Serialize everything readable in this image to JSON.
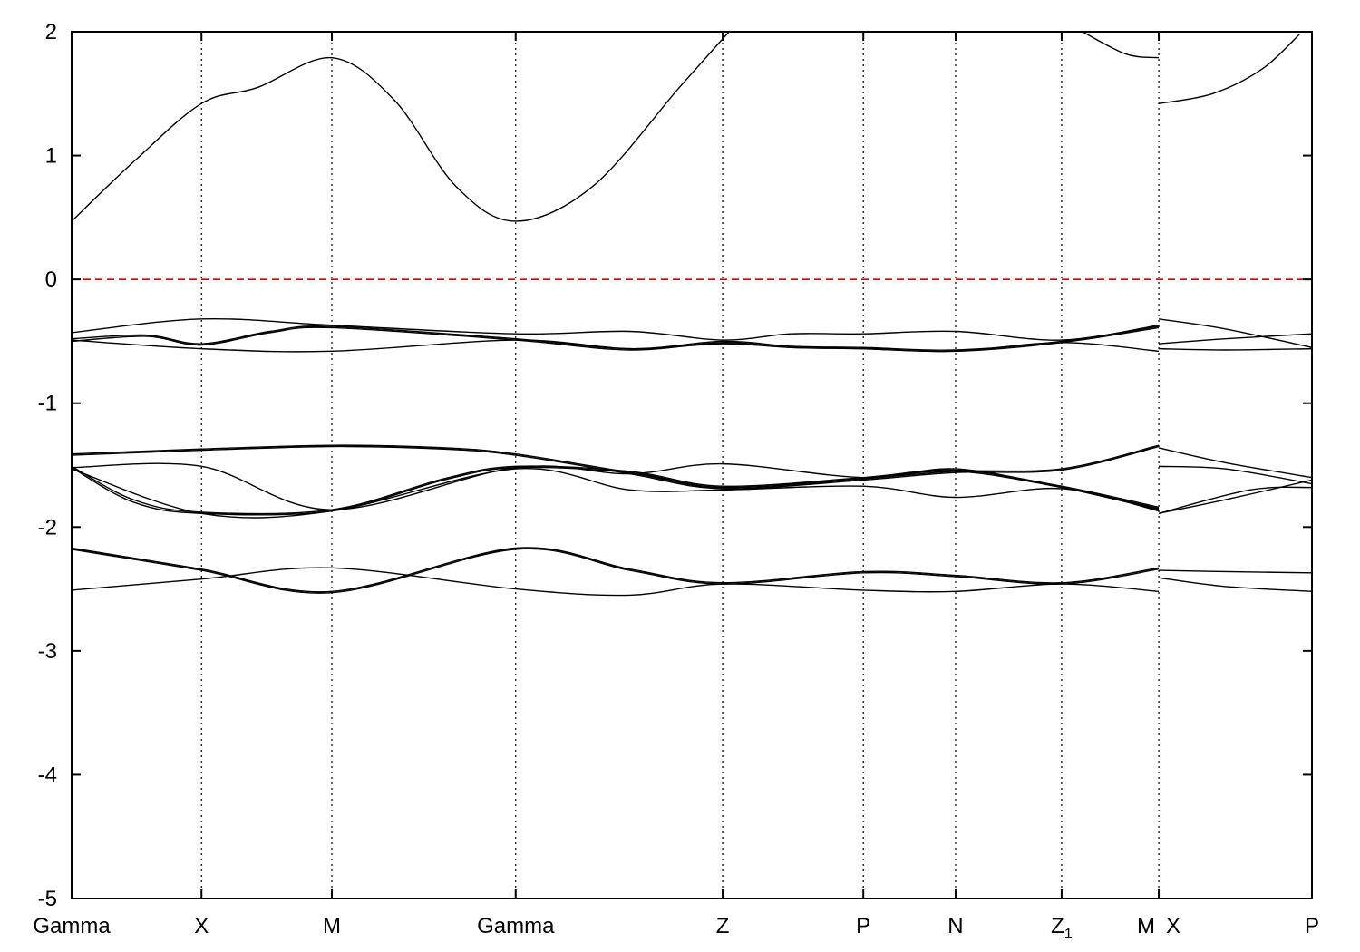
{
  "chart_data": {
    "type": "line",
    "title": "",
    "xlabel": "",
    "ylabel": "",
    "ylim": [
      -5,
      2
    ],
    "yticks": [
      -5,
      -4,
      -3,
      -2,
      -1,
      0,
      1,
      2
    ],
    "grid": "vertical dotted lines at k-points",
    "reference_line": {
      "y": 0,
      "color": "#cc0000",
      "style": "dashed"
    },
    "x_range": [
      0,
      1
    ],
    "kpoints": [
      {
        "label": "Gamma",
        "x": 0.0
      },
      {
        "label": "X",
        "x": 0.1047
      },
      {
        "label": "M",
        "x": 0.2098
      },
      {
        "label": "Gamma",
        "x": 0.358
      },
      {
        "label": "Z",
        "x": 0.5249
      },
      {
        "label": "P",
        "x": 0.6383
      },
      {
        "label": "N",
        "x": 0.7127
      },
      {
        "label": "Z",
        "sub": "1",
        "x": 0.7982
      },
      {
        "label": "M",
        "x": 0.8765
      },
      {
        "label": "X",
        "x": 0.8765
      },
      {
        "label": "P",
        "x": 1.0
      }
    ],
    "series": [
      {
        "values": [
          [
            0,
            0.47
          ],
          [
            0.05,
            0.95
          ],
          [
            0.1047,
            1.42
          ],
          [
            0.15,
            1.55
          ],
          [
            0.2098,
            1.79
          ],
          [
            0.26,
            1.45
          ],
          [
            0.31,
            0.75
          ],
          [
            0.358,
            0.47
          ],
          [
            0.42,
            0.75
          ],
          [
            0.49,
            1.55
          ],
          [
            0.53,
            2.0
          ]
        ]
      },
      {
        "values": [
          [
            0.815,
            2.0
          ],
          [
            0.85,
            1.82
          ],
          [
            0.8765,
            1.79
          ]
        ]
      },
      {
        "values": [
          [
            0.8765,
            1.42
          ],
          [
            0.92,
            1.5
          ],
          [
            0.96,
            1.7
          ],
          [
            0.99,
            1.98
          ]
        ]
      },
      {
        "values": [
          [
            0,
            -0.43
          ],
          [
            0.1047,
            -0.32
          ],
          [
            0.2098,
            -0.37
          ],
          [
            0.358,
            -0.44
          ],
          [
            0.45,
            -0.42
          ],
          [
            0.5249,
            -0.49
          ],
          [
            0.58,
            -0.44
          ],
          [
            0.6383,
            -0.44
          ],
          [
            0.7127,
            -0.42
          ],
          [
            0.7982,
            -0.49
          ],
          [
            0.8765,
            -0.37
          ]
        ]
      },
      {
        "values": [
          [
            0,
            -0.49
          ],
          [
            0.1047,
            -0.56
          ],
          [
            0.2098,
            -0.58
          ],
          [
            0.358,
            -0.49
          ],
          [
            0.45,
            -0.56
          ],
          [
            0.5249,
            -0.52
          ],
          [
            0.58,
            -0.55
          ],
          [
            0.6383,
            -0.56
          ],
          [
            0.7127,
            -0.58
          ],
          [
            0.7982,
            -0.51
          ],
          [
            0.8765,
            -0.58
          ]
        ]
      },
      {
        "values": [
          [
            0,
            -0.48
          ],
          [
            0.06,
            -0.45
          ],
          [
            0.1047,
            -0.52
          ],
          [
            0.16,
            -0.42
          ],
          [
            0.2098,
            -0.38
          ],
          [
            0.358,
            -0.48
          ],
          [
            0.45,
            -0.56
          ],
          [
            0.5249,
            -0.5
          ],
          [
            0.58,
            -0.54
          ],
          [
            0.6383,
            -0.55
          ],
          [
            0.7127,
            -0.57
          ],
          [
            0.7982,
            -0.5
          ],
          [
            0.8765,
            -0.38
          ]
        ]
      },
      {
        "values": [
          [
            0,
            -0.5
          ],
          [
            0.06,
            -0.46
          ],
          [
            0.1047,
            -0.53
          ],
          [
            0.16,
            -0.43
          ],
          [
            0.2098,
            -0.39
          ],
          [
            0.358,
            -0.49
          ],
          [
            0.45,
            -0.57
          ],
          [
            0.5249,
            -0.51
          ],
          [
            0.58,
            -0.55
          ],
          [
            0.6383,
            -0.56
          ],
          [
            0.7127,
            -0.58
          ],
          [
            0.7982,
            -0.51
          ],
          [
            0.8765,
            -0.39
          ]
        ]
      },
      {
        "values": [
          [
            0.8765,
            -0.32
          ],
          [
            0.93,
            -0.4
          ],
          [
            1.0,
            -0.55
          ]
        ]
      },
      {
        "values": [
          [
            0.8765,
            -0.52
          ],
          [
            0.93,
            -0.48
          ],
          [
            1.0,
            -0.44
          ]
        ]
      },
      {
        "values": [
          [
            0.8765,
            -0.56
          ],
          [
            0.93,
            -0.57
          ],
          [
            1.0,
            -0.56
          ]
        ]
      },
      {
        "values": [
          [
            0,
            -1.41
          ],
          [
            0.1047,
            -1.37
          ],
          [
            0.2098,
            -1.34
          ],
          [
            0.3,
            -1.36
          ],
          [
            0.358,
            -1.41
          ],
          [
            0.45,
            -1.56
          ],
          [
            0.5249,
            -1.68
          ],
          [
            0.6383,
            -1.61
          ],
          [
            0.7127,
            -1.55
          ],
          [
            0.7982,
            -1.53
          ],
          [
            0.8765,
            -1.34
          ]
        ]
      },
      {
        "values": [
          [
            0,
            -1.42
          ],
          [
            0.1047,
            -1.38
          ],
          [
            0.2098,
            -1.35
          ],
          [
            0.3,
            -1.37
          ],
          [
            0.358,
            -1.42
          ],
          [
            0.45,
            -1.57
          ],
          [
            0.5249,
            -1.69
          ],
          [
            0.6383,
            -1.62
          ],
          [
            0.7127,
            -1.56
          ],
          [
            0.7982,
            -1.54
          ],
          [
            0.8765,
            -1.35
          ]
        ]
      },
      {
        "values": [
          [
            0,
            -1.52
          ],
          [
            0.1047,
            -1.51
          ],
          [
            0.2098,
            -1.86
          ],
          [
            0.358,
            -1.52
          ],
          [
            0.45,
            -1.57
          ],
          [
            0.5249,
            -1.49
          ],
          [
            0.6383,
            -1.6
          ],
          [
            0.7127,
            -1.53
          ],
          [
            0.7982,
            -1.68
          ],
          [
            0.8765,
            -1.86
          ]
        ]
      },
      {
        "values": [
          [
            0,
            -1.53
          ],
          [
            0.1047,
            -1.89
          ],
          [
            0.2098,
            -1.87
          ],
          [
            0.358,
            -1.53
          ],
          [
            0.45,
            -1.7
          ],
          [
            0.5249,
            -1.7
          ],
          [
            0.6383,
            -1.67
          ],
          [
            0.7127,
            -1.76
          ],
          [
            0.7982,
            -1.69
          ],
          [
            0.8765,
            -1.87
          ]
        ]
      },
      {
        "values": [
          [
            0,
            -1.52
          ],
          [
            0.05,
            -1.8
          ],
          [
            0.1047,
            -1.89
          ],
          [
            0.2098,
            -1.87
          ],
          [
            0.3,
            -1.62
          ],
          [
            0.358,
            -1.52
          ],
          [
            0.45,
            -1.56
          ],
          [
            0.5249,
            -1.68
          ],
          [
            0.6383,
            -1.61
          ],
          [
            0.7127,
            -1.55
          ],
          [
            0.7982,
            -1.68
          ],
          [
            0.8765,
            -1.85
          ]
        ]
      },
      {
        "values": [
          [
            0,
            -1.51
          ],
          [
            0.05,
            -1.78
          ],
          [
            0.1047,
            -1.88
          ],
          [
            0.2098,
            -1.86
          ],
          [
            0.3,
            -1.61
          ],
          [
            0.358,
            -1.51
          ],
          [
            0.45,
            -1.55
          ],
          [
            0.5249,
            -1.67
          ],
          [
            0.6383,
            -1.6
          ],
          [
            0.7127,
            -1.54
          ],
          [
            0.7982,
            -1.67
          ],
          [
            0.8765,
            -1.84
          ]
        ]
      },
      {
        "values": [
          [
            0.8765,
            -1.36
          ],
          [
            0.93,
            -1.48
          ],
          [
            1.0,
            -1.6
          ]
        ]
      },
      {
        "values": [
          [
            0.8765,
            -1.51
          ],
          [
            0.93,
            -1.53
          ],
          [
            1.0,
            -1.65
          ]
        ]
      },
      {
        "values": [
          [
            0.8765,
            -1.89
          ],
          [
            0.93,
            -1.78
          ],
          [
            1.0,
            -1.62
          ]
        ]
      },
      {
        "values": [
          [
            0.8765,
            -1.89
          ],
          [
            0.95,
            -1.7
          ],
          [
            1.0,
            -1.68
          ]
        ]
      },
      {
        "values": [
          [
            0,
            -2.17
          ],
          [
            0.1047,
            -2.34
          ],
          [
            0.2098,
            -2.52
          ],
          [
            0.358,
            -2.17
          ],
          [
            0.45,
            -2.34
          ],
          [
            0.5249,
            -2.45
          ],
          [
            0.6383,
            -2.36
          ],
          [
            0.7127,
            -2.39
          ],
          [
            0.7982,
            -2.45
          ],
          [
            0.8765,
            -2.33
          ]
        ]
      },
      {
        "values": [
          [
            0,
            -2.18
          ],
          [
            0.1047,
            -2.35
          ],
          [
            0.2098,
            -2.53
          ],
          [
            0.358,
            -2.18
          ],
          [
            0.45,
            -2.35
          ],
          [
            0.5249,
            -2.46
          ],
          [
            0.6383,
            -2.37
          ],
          [
            0.7127,
            -2.4
          ],
          [
            0.7982,
            -2.46
          ],
          [
            0.8765,
            -2.34
          ]
        ]
      },
      {
        "values": [
          [
            0,
            -2.51
          ],
          [
            0.1047,
            -2.42
          ],
          [
            0.2098,
            -2.33
          ],
          [
            0.358,
            -2.5
          ],
          [
            0.45,
            -2.55
          ],
          [
            0.5249,
            -2.46
          ],
          [
            0.6383,
            -2.51
          ],
          [
            0.7127,
            -2.52
          ],
          [
            0.7982,
            -2.46
          ],
          [
            0.8765,
            -2.52
          ]
        ]
      },
      {
        "values": [
          [
            0.8765,
            -2.35
          ],
          [
            0.93,
            -2.36
          ],
          [
            1.0,
            -2.37
          ]
        ]
      },
      {
        "values": [
          [
            0.8765,
            -2.41
          ],
          [
            0.93,
            -2.48
          ],
          [
            1.0,
            -2.52
          ]
        ]
      }
    ]
  }
}
